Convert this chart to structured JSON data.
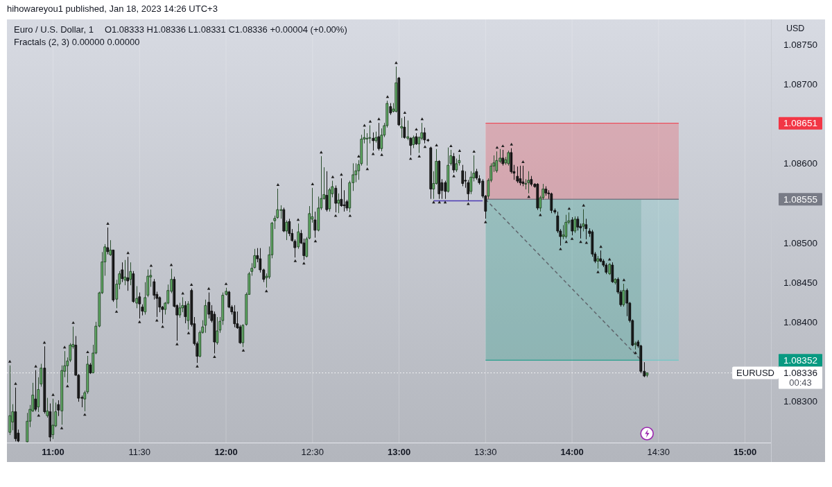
{
  "chart_data": {
    "type": "candlestick",
    "title": "Euro / U.S. Dollar, 1",
    "subtitle": "O1.08333 H1.08336 L1.08331 C1.08336 +0.00004 (+0.00%)",
    "ylabel": "USD",
    "x": [
      "2023-01-18T10:45",
      "2023-01-18T10:46",
      "2023-01-18T10:47",
      "2023-01-18T10:48",
      "2023-01-18T10:51",
      "2023-01-18T10:52",
      "2023-01-18T10:53",
      "2023-01-18T10:54",
      "2023-01-18T10:55",
      "2023-01-18T10:56",
      "2023-01-18T10:57",
      "2023-01-18T10:58",
      "2023-01-18T10:59",
      "2023-01-18T11:00",
      "2023-01-18T11:01",
      "2023-01-18T11:02",
      "2023-01-18T11:03",
      "2023-01-18T11:04",
      "2023-01-18T11:05",
      "2023-01-18T11:06",
      "2023-01-18T11:07",
      "2023-01-18T11:08",
      "2023-01-18T11:09",
      "2023-01-18T11:10",
      "2023-01-18T11:11",
      "2023-01-18T11:12",
      "2023-01-18T11:13",
      "2023-01-18T11:14",
      "2023-01-18T11:15",
      "2023-01-18T11:16",
      "2023-01-18T11:17",
      "2023-01-18T11:18",
      "2023-01-18T11:19",
      "2023-01-18T11:20",
      "2023-01-18T11:21",
      "2023-01-18T11:22",
      "2023-01-18T11:23",
      "2023-01-18T11:24",
      "2023-01-18T11:25",
      "2023-01-18T11:26",
      "2023-01-18T11:27",
      "2023-01-18T11:28",
      "2023-01-18T11:29",
      "2023-01-18T11:30",
      "2023-01-18T11:31",
      "2023-01-18T11:32",
      "2023-01-18T11:33",
      "2023-01-18T11:34",
      "2023-01-18T11:35",
      "2023-01-18T11:36",
      "2023-01-18T11:37",
      "2023-01-18T11:38",
      "2023-01-18T11:39",
      "2023-01-18T11:40",
      "2023-01-18T11:41",
      "2023-01-18T11:42",
      "2023-01-18T11:43",
      "2023-01-18T11:44",
      "2023-01-18T11:45",
      "2023-01-18T11:46",
      "2023-01-18T11:47",
      "2023-01-18T11:48",
      "2023-01-18T11:49",
      "2023-01-18T11:50",
      "2023-01-18T11:51",
      "2023-01-18T11:52",
      "2023-01-18T11:53",
      "2023-01-18T11:54",
      "2023-01-18T11:55",
      "2023-01-18T11:56",
      "2023-01-18T11:57",
      "2023-01-18T11:58",
      "2023-01-18T11:59",
      "2023-01-18T12:00",
      "2023-01-18T12:01",
      "2023-01-18T12:02",
      "2023-01-18T12:03",
      "2023-01-18T12:04",
      "2023-01-18T12:05",
      "2023-01-18T12:06",
      "2023-01-18T12:07",
      "2023-01-18T12:08",
      "2023-01-18T12:09",
      "2023-01-18T12:10",
      "2023-01-18T12:11",
      "2023-01-18T12:12",
      "2023-01-18T12:13",
      "2023-01-18T12:14",
      "2023-01-18T12:15",
      "2023-01-18T12:16",
      "2023-01-18T12:17",
      "2023-01-18T12:18",
      "2023-01-18T12:19",
      "2023-01-18T12:20",
      "2023-01-18T12:21",
      "2023-01-18T12:22",
      "2023-01-18T12:23",
      "2023-01-18T12:24",
      "2023-01-18T12:25",
      "2023-01-18T12:26",
      "2023-01-18T12:27",
      "2023-01-18T12:28",
      "2023-01-18T12:29",
      "2023-01-18T12:30",
      "2023-01-18T12:31",
      "2023-01-18T12:32",
      "2023-01-18T12:33",
      "2023-01-18T12:34",
      "2023-01-18T12:35",
      "2023-01-18T12:36",
      "2023-01-18T12:37",
      "2023-01-18T12:38",
      "2023-01-18T12:39",
      "2023-01-18T12:40",
      "2023-01-18T12:41",
      "2023-01-18T12:42",
      "2023-01-18T12:43",
      "2023-01-18T12:44",
      "2023-01-18T12:45",
      "2023-01-18T12:46",
      "2023-01-18T12:47",
      "2023-01-18T12:48",
      "2023-01-18T12:49",
      "2023-01-18T12:50",
      "2023-01-18T12:51",
      "2023-01-18T12:52",
      "2023-01-18T12:53",
      "2023-01-18T12:54",
      "2023-01-18T12:55",
      "2023-01-18T12:56",
      "2023-01-18T12:57",
      "2023-01-18T12:58",
      "2023-01-18T12:59",
      "2023-01-18T13:00",
      "2023-01-18T13:01",
      "2023-01-18T13:02",
      "2023-01-18T13:03",
      "2023-01-18T13:04",
      "2023-01-18T13:05",
      "2023-01-18T13:06",
      "2023-01-18T13:07",
      "2023-01-18T13:08",
      "2023-01-18T13:09",
      "2023-01-18T13:10",
      "2023-01-18T13:11",
      "2023-01-18T13:12",
      "2023-01-18T13:13",
      "2023-01-18T13:14",
      "2023-01-18T13:15",
      "2023-01-18T13:16",
      "2023-01-18T13:17",
      "2023-01-18T13:18",
      "2023-01-18T13:19",
      "2023-01-18T13:20",
      "2023-01-18T13:21",
      "2023-01-18T13:22",
      "2023-01-18T13:23",
      "2023-01-18T13:24",
      "2023-01-18T13:25",
      "2023-01-18T13:26",
      "2023-01-18T13:27",
      "2023-01-18T13:28",
      "2023-01-18T13:29",
      "2023-01-18T13:30",
      "2023-01-18T13:31",
      "2023-01-18T13:32",
      "2023-01-18T13:33",
      "2023-01-18T13:34",
      "2023-01-18T13:35",
      "2023-01-18T13:36",
      "2023-01-18T13:37",
      "2023-01-18T13:38",
      "2023-01-18T13:39",
      "2023-01-18T13:40",
      "2023-01-18T13:41",
      "2023-01-18T13:42",
      "2023-01-18T13:43",
      "2023-01-18T13:44",
      "2023-01-18T13:45",
      "2023-01-18T13:46",
      "2023-01-18T13:47",
      "2023-01-18T13:48",
      "2023-01-18T13:49",
      "2023-01-18T13:50",
      "2023-01-18T13:51",
      "2023-01-18T13:52",
      "2023-01-18T13:53",
      "2023-01-18T13:54",
      "2023-01-18T13:55",
      "2023-01-18T13:56",
      "2023-01-18T13:57",
      "2023-01-18T13:58",
      "2023-01-18T13:59",
      "2023-01-18T14:00",
      "2023-01-18T14:01",
      "2023-01-18T14:02",
      "2023-01-18T14:03",
      "2023-01-18T14:04",
      "2023-01-18T14:05",
      "2023-01-18T14:06",
      "2023-01-18T14:07",
      "2023-01-18T14:08",
      "2023-01-18T14:09",
      "2023-01-18T14:10",
      "2023-01-18T14:11",
      "2023-01-18T14:12",
      "2023-01-18T14:13",
      "2023-01-18T14:14",
      "2023-01-18T14:15",
      "2023-01-18T14:16",
      "2023-01-18T14:17",
      "2023-01-18T14:18",
      "2023-01-18T14:19",
      "2023-01-18T14:20",
      "2023-01-18T14:21",
      "2023-01-18T14:22",
      "2023-01-18T14:23",
      "2023-01-18T14:24",
      "2023-01-18T14:25",
      "2023-01-18T14:26"
    ],
    "ohlc": [
      [
        1.08261,
        1.08345,
        1.08258,
        1.08282
      ],
      [
        1.08274,
        1.08296,
        1.08264,
        1.08287
      ],
      [
        1.08287,
        1.08317,
        1.0825,
        1.08253
      ],
      [
        1.0826,
        1.08264,
        1.08249,
        1.0825
      ],
      [
        1.08249,
        1.08285,
        1.08249,
        1.08275
      ],
      [
        1.08275,
        1.08295,
        1.08268,
        1.0829
      ],
      [
        1.08288,
        1.08323,
        1.08287,
        1.08308
      ],
      [
        1.08303,
        1.08339,
        1.08288,
        1.0829
      ],
      [
        1.08293,
        1.0833,
        1.08287,
        1.08315
      ],
      [
        1.08322,
        1.08347,
        1.08319,
        1.08342
      ],
      [
        1.08342,
        1.08369,
        1.08285,
        1.08287
      ],
      [
        1.08282,
        1.08304,
        1.0828,
        1.08288
      ],
      [
        1.08287,
        1.08297,
        1.0825,
        1.08255
      ],
      [
        1.08258,
        1.08303,
        1.08253,
        1.0827
      ],
      [
        1.08269,
        1.08298,
        1.08268,
        1.08287
      ],
      [
        1.08296,
        1.08301,
        1.08282,
        1.08289
      ],
      [
        1.08288,
        1.08345,
        1.08271,
        1.08339
      ],
      [
        1.08338,
        1.08363,
        1.08331,
        1.08345
      ],
      [
        1.08345,
        1.08355,
        1.08324,
        1.08351
      ],
      [
        1.08352,
        1.08373,
        1.0835,
        1.08371
      ],
      [
        1.08369,
        1.08394,
        1.08367,
        1.08372
      ],
      [
        1.08371,
        1.08382,
        1.08333,
        1.08333
      ],
      [
        1.08333,
        1.08334,
        1.083,
        1.08304
      ],
      [
        1.08305,
        1.08307,
        1.08293,
        1.08304
      ],
      [
        1.08303,
        1.08313,
        1.08288,
        1.08311
      ],
      [
        1.08312,
        1.08357,
        1.0831,
        1.08347
      ],
      [
        1.08346,
        1.08348,
        1.08335,
        1.08336
      ],
      [
        1.08336,
        1.08371,
        1.08336,
        1.08361
      ],
      [
        1.08361,
        1.084,
        1.0836,
        1.08395
      ],
      [
        1.08395,
        1.08438,
        1.08394,
        1.08437
      ],
      [
        1.08437,
        1.08488,
        1.08436,
        1.08476
      ],
      [
        1.08476,
        1.08498,
        1.08459,
        1.08495
      ],
      [
        1.08494,
        1.08519,
        1.08486,
        1.08489
      ],
      [
        1.08485,
        1.08503,
        1.08484,
        1.08491
      ],
      [
        1.08491,
        1.08491,
        1.08426,
        1.08428
      ],
      [
        1.08429,
        1.08453,
        1.08418,
        1.08448
      ],
      [
        1.08448,
        1.08464,
        1.08442,
        1.08461
      ],
      [
        1.08466,
        1.08475,
        1.08451,
        1.08455
      ],
      [
        1.08453,
        1.08478,
        1.08447,
        1.08457
      ],
      [
        1.08456,
        1.08482,
        1.0844,
        1.08452
      ],
      [
        1.08454,
        1.08475,
        1.08447,
        1.08464
      ],
      [
        1.08461,
        1.08464,
        1.08425,
        1.08426
      ],
      [
        1.08424,
        1.08445,
        1.08418,
        1.0843
      ],
      [
        1.08432,
        1.08437,
        1.08405,
        1.08423
      ],
      [
        1.08419,
        1.08422,
        1.08409,
        1.08414
      ],
      [
        1.08413,
        1.0845,
        1.0841,
        1.08431
      ],
      [
        1.08434,
        1.08466,
        1.08432,
        1.08458
      ],
      [
        1.08457,
        1.08466,
        1.08445,
        1.08459
      ],
      [
        1.08451,
        1.08454,
        1.08429,
        1.08434
      ],
      [
        1.08435,
        1.08438,
        1.08407,
        1.0843
      ],
      [
        1.08431,
        1.08432,
        1.08413,
        1.08419
      ],
      [
        1.08419,
        1.0842,
        1.08399,
        1.08416
      ],
      [
        1.08416,
        1.08425,
        1.0841,
        1.08424
      ],
      [
        1.08424,
        1.08447,
        1.08423,
        1.0844
      ],
      [
        1.08439,
        1.08467,
        1.08437,
        1.08454
      ],
      [
        1.08454,
        1.08457,
        1.08419,
        1.0842
      ],
      [
        1.08421,
        1.08422,
        1.08377,
        1.08409
      ],
      [
        1.08409,
        1.08424,
        1.08406,
        1.08418
      ],
      [
        1.08418,
        1.08431,
        1.08413,
        1.08421
      ],
      [
        1.08421,
        1.08426,
        1.08399,
        1.08407
      ],
      [
        1.08402,
        1.08426,
        1.08391,
        1.08423
      ],
      [
        1.0844,
        1.08442,
        1.08395,
        1.08397
      ],
      [
        1.08398,
        1.08406,
        1.08371,
        1.08373
      ],
      [
        1.08373,
        1.08375,
        1.08349,
        1.08357
      ],
      [
        1.08357,
        1.08389,
        1.08356,
        1.08387
      ],
      [
        1.08387,
        1.08402,
        1.08386,
        1.08394
      ],
      [
        1.08396,
        1.08428,
        1.08387,
        1.08421
      ],
      [
        1.08425,
        1.08437,
        1.08405,
        1.0841
      ],
      [
        1.08414,
        1.08421,
        1.084,
        1.08402
      ],
      [
        1.0841,
        1.08413,
        1.08361,
        1.08375
      ],
      [
        1.08374,
        1.08406,
        1.08372,
        1.08389
      ],
      [
        1.0839,
        1.08406,
        1.08387,
        1.08401
      ],
      [
        1.08402,
        1.08437,
        1.08397,
        1.08434
      ],
      [
        1.08435,
        1.08443,
        1.08434,
        1.08439
      ],
      [
        1.08438,
        1.08439,
        1.08418,
        1.08419
      ],
      [
        1.08419,
        1.08421,
        1.0841,
        1.08413
      ],
      [
        1.08413,
        1.08421,
        1.08394,
        1.08398
      ],
      [
        1.08398,
        1.08413,
        1.08392,
        1.08393
      ],
      [
        1.08394,
        1.08396,
        1.08373,
        1.08374
      ],
      [
        1.08374,
        1.08397,
        1.08369,
        1.08396
      ],
      [
        1.08397,
        1.08437,
        1.08396,
        1.08435
      ],
      [
        1.08435,
        1.08463,
        1.08435,
        1.08461
      ],
      [
        1.08464,
        1.08474,
        1.08459,
        1.08468
      ],
      [
        1.08469,
        1.08492,
        1.08468,
        1.08484
      ],
      [
        1.08484,
        1.08493,
        1.08476,
        1.0848
      ],
      [
        1.0848,
        1.08493,
        1.08463,
        1.08466
      ],
      [
        1.08466,
        1.08467,
        1.08451,
        1.08454
      ],
      [
        1.08456,
        1.08461,
        1.08444,
        1.08458
      ],
      [
        1.08457,
        1.08495,
        1.08455,
        1.08485
      ],
      [
        1.08485,
        1.08526,
        1.08481,
        1.08525
      ],
      [
        1.08528,
        1.08534,
        1.08518,
        1.08531
      ],
      [
        1.08532,
        1.08568,
        1.08531,
        1.08542
      ],
      [
        1.08541,
        1.08547,
        1.08531,
        1.08542
      ],
      [
        1.08542,
        1.08544,
        1.08514,
        1.08515
      ],
      [
        1.08515,
        1.08528,
        1.08504,
        1.08526
      ],
      [
        1.08527,
        1.0853,
        1.08509,
        1.08512
      ],
      [
        1.08512,
        1.08517,
        1.08502,
        1.08503
      ],
      [
        1.08502,
        1.08504,
        1.08482,
        1.08494
      ],
      [
        1.08495,
        1.08524,
        1.08493,
        1.08514
      ],
      [
        1.08512,
        1.08516,
        1.08499,
        1.085
      ],
      [
        1.085,
        1.08505,
        1.08479,
        1.08484
      ],
      [
        1.08483,
        1.08507,
        1.08482,
        1.08505
      ],
      [
        1.08506,
        1.08546,
        1.08505,
        1.08537
      ],
      [
        1.0853,
        1.08569,
        1.08526,
        1.08533
      ],
      [
        1.08529,
        1.08539,
        1.08507,
        1.08516
      ],
      [
        1.08516,
        1.08558,
        1.08515,
        1.08544
      ],
      [
        1.08544,
        1.08609,
        1.08542,
        1.08556
      ],
      [
        1.08556,
        1.08595,
        1.08555,
        1.08561
      ],
      [
        1.0856,
        1.0859,
        1.0854,
        1.08542
      ],
      [
        1.08543,
        1.08569,
        1.0854,
        1.08567
      ],
      [
        1.08562,
        1.08578,
        1.08558,
        1.08571
      ],
      [
        1.08569,
        1.08572,
        1.08539,
        1.0855
      ],
      [
        1.0855,
        1.08562,
        1.08538,
        1.08554
      ],
      [
        1.08555,
        1.08581,
        1.08546,
        1.08547
      ],
      [
        1.08548,
        1.08566,
        1.0854,
        1.08547
      ],
      [
        1.08552,
        1.08554,
        1.08541,
        1.08544
      ],
      [
        1.08544,
        1.08578,
        1.08539,
        1.08576
      ],
      [
        1.08576,
        1.086,
        1.08566,
        1.08586
      ],
      [
        1.08586,
        1.086,
        1.08577,
        1.08591
      ],
      [
        1.08591,
        1.08604,
        1.0858,
        1.08599
      ],
      [
        1.086,
        1.08636,
        1.08598,
        1.08631
      ],
      [
        1.08631,
        1.08643,
        1.08626,
        1.08633
      ],
      [
        1.08632,
        1.08638,
        1.08598,
        1.08632
      ],
      [
        1.08632,
        1.08648,
        1.08626,
        1.08633
      ],
      [
        1.08632,
        1.08639,
        1.08617,
        1.08629
      ],
      [
        1.08629,
        1.0864,
        1.08627,
        1.08633
      ],
      [
        1.08634,
        1.08651,
        1.08617,
        1.08619
      ],
      [
        1.08619,
        1.08644,
        1.08616,
        1.08636
      ],
      [
        1.08636,
        1.08651,
        1.08634,
        1.08648
      ],
      [
        1.08648,
        1.08679,
        1.08646,
        1.08676
      ],
      [
        1.08672,
        1.08676,
        1.08662,
        1.08664
      ],
      [
        1.08666,
        1.08676,
        1.08665,
        1.08669
      ],
      [
        1.08666,
        1.08722,
        1.08665,
        1.08702
      ],
      [
        1.08708,
        1.08709,
        1.08648,
        1.08649
      ],
      [
        1.08645,
        1.08657,
        1.08633,
        1.08647
      ],
      [
        1.08646,
        1.08659,
        1.08632,
        1.08633
      ],
      [
        1.08632,
        1.08654,
        1.0863,
        1.08634
      ],
      [
        1.08632,
        1.08633,
        1.08611,
        1.08623
      ],
      [
        1.08624,
        1.08635,
        1.0862,
        1.08633
      ],
      [
        1.08634,
        1.08638,
        1.08624,
        1.08625
      ],
      [
        1.08625,
        1.08634,
        1.08614,
        1.08633
      ],
      [
        1.08632,
        1.08651,
        1.0863,
        1.08639
      ],
      [
        1.08639,
        1.08645,
        1.08626,
        1.0863
      ],
      [
        1.0863,
        1.08631,
        1.08628,
        1.08629
      ],
      [
        1.0862,
        1.08621,
        1.08556,
        1.08568
      ],
      [
        1.08568,
        1.0859,
        1.08556,
        1.08575
      ],
      [
        1.08575,
        1.08618,
        1.08574,
        1.08603
      ],
      [
        1.08603,
        1.08604,
        1.08556,
        1.08562
      ],
      [
        1.08576,
        1.0858,
        1.08556,
        1.08566
      ],
      [
        1.08576,
        1.08578,
        1.08556,
        1.08565
      ],
      [
        1.08565,
        1.0862,
        1.08564,
        1.08598
      ],
      [
        1.086,
        1.08617,
        1.08598,
        1.0861
      ],
      [
        1.08609,
        1.08613,
        1.08589,
        1.08592
      ],
      [
        1.08592,
        1.08606,
        1.0859,
        1.086
      ],
      [
        1.08601,
        1.08611,
        1.08598,
        1.08604
      ],
      [
        1.08591,
        1.08598,
        1.08572,
        1.08575
      ],
      [
        1.08579,
        1.0859,
        1.0857,
        1.08578
      ],
      [
        1.08576,
        1.08579,
        1.08554,
        1.08562
      ],
      [
        1.08565,
        1.0859,
        1.08562,
        1.08583
      ],
      [
        1.08582,
        1.0861,
        1.08578,
        1.08588
      ],
      [
        1.0859,
        1.08593,
        1.0858,
        1.08582
      ],
      [
        1.08581,
        1.08585,
        1.08574,
        1.08576
      ],
      [
        1.08578,
        1.0858,
        1.08557,
        1.08559
      ],
      [
        1.08559,
        1.0856,
        1.08531,
        1.0854
      ],
      [
        1.08559,
        1.08581,
        1.08556,
        1.08579
      ],
      [
        1.08579,
        1.086,
        1.08577,
        1.08597
      ],
      [
        1.08597,
        1.0861,
        1.0859,
        1.08601
      ],
      [
        1.08591,
        1.08615,
        1.08589,
        1.08604
      ],
      [
        1.08603,
        1.08618,
        1.08601,
        1.08607
      ],
      [
        1.08607,
        1.08617,
        1.08598,
        1.086
      ],
      [
        1.08601,
        1.08608,
        1.08599,
        1.08605
      ],
      [
        1.086,
        1.08616,
        1.08598,
        1.08614
      ],
      [
        1.08614,
        1.08619,
        1.08588,
        1.0859
      ],
      [
        1.0859,
        1.08598,
        1.0858,
        1.08588
      ],
      [
        1.08584,
        1.08596,
        1.08576,
        1.08578
      ],
      [
        1.08581,
        1.08597,
        1.08573,
        1.08576
      ],
      [
        1.08577,
        1.08597,
        1.08572,
        1.08575
      ],
      [
        1.08575,
        1.0858,
        1.08568,
        1.08575
      ],
      [
        1.08576,
        1.0859,
        1.08563,
        1.08579
      ],
      [
        1.0858,
        1.08584,
        1.08572,
        1.08574
      ],
      [
        1.08574,
        1.08575,
        1.0857,
        1.08571
      ],
      [
        1.08574,
        1.08575,
        1.08542,
        1.08544
      ],
      [
        1.08544,
        1.08559,
        1.0854,
        1.08557
      ],
      [
        1.08557,
        1.08574,
        1.08555,
        1.08568
      ],
      [
        1.08568,
        1.08571,
        1.0856,
        1.08563
      ],
      [
        1.08563,
        1.08566,
        1.08556,
        1.08562
      ],
      [
        1.08562,
        1.08563,
        1.08538,
        1.08541
      ],
      [
        1.08541,
        1.08543,
        1.08537,
        1.08539
      ],
      [
        1.08534,
        1.08539,
        1.08513,
        1.08515
      ],
      [
        1.08515,
        1.08517,
        1.08497,
        1.08508
      ],
      [
        1.08508,
        1.08522,
        1.08505,
        1.0851
      ],
      [
        1.08508,
        1.08535,
        1.08506,
        1.08526
      ],
      [
        1.08526,
        1.08538,
        1.08524,
        1.08528
      ],
      [
        1.08529,
        1.08532,
        1.0851,
        1.08515
      ],
      [
        1.08515,
        1.08533,
        1.08513,
        1.0853
      ],
      [
        1.0853,
        1.08533,
        1.08516,
        1.0852
      ],
      [
        1.08521,
        1.08524,
        1.08506,
        1.08519
      ],
      [
        1.08521,
        1.08542,
        1.08515,
        1.08524
      ],
      [
        1.08523,
        1.0853,
        1.08505,
        1.08518
      ],
      [
        1.08515,
        1.08518,
        1.08508,
        1.08512
      ],
      [
        1.08514,
        1.08516,
        1.08483,
        1.08486
      ],
      [
        1.08486,
        1.08488,
        1.08475,
        1.08477
      ],
      [
        1.08477,
        1.08483,
        1.08468,
        1.0848
      ],
      [
        1.0848,
        1.0849,
        1.08476,
        1.08477
      ],
      [
        1.08477,
        1.08479,
        1.0847,
        1.08472
      ],
      [
        1.08472,
        1.08474,
        1.08461,
        1.08463
      ],
      [
        1.08461,
        1.08474,
        1.0846,
        1.08473
      ],
      [
        1.08472,
        1.08475,
        1.0845,
        1.08451
      ],
      [
        1.0845,
        1.08455,
        1.08448,
        1.08454
      ],
      [
        1.08454,
        1.08456,
        1.08436,
        1.08438
      ],
      [
        1.08438,
        1.0844,
        1.0842,
        1.08422
      ],
      [
        1.08422,
        1.08448,
        1.0842,
        1.0844
      ],
      [
        1.0844,
        1.08442,
        1.08408,
        1.08424
      ],
      [
        1.08424,
        1.08425,
        1.084,
        1.08402
      ],
      [
        1.08402,
        1.08403,
        1.0837,
        1.08371
      ],
      [
        1.08372,
        1.08375,
        1.08366,
        1.08373
      ],
      [
        1.08375,
        1.08377,
        1.08368,
        1.0837
      ],
      [
        1.0837,
        1.08371,
        1.08336,
        1.08338
      ],
      [
        1.08338,
        1.08349,
        1.08331,
        1.08332
      ],
      [
        1.08333,
        1.08336,
        1.08331,
        1.08336
      ]
    ],
    "series": [
      {
        "type": "line",
        "color": "#f23645",
        "x": [
          "2023-01-18T13:30",
          "2023-01-18T14:37"
        ],
        "values": [
          1.08651,
          1.08651
        ],
        "lower": [
          1.08555,
          1.08555
        ],
        "upper": [
          1.08651,
          1.08651
        ]
      },
      {
        "type": "line",
        "color": "#089981",
        "x": [
          "2023-01-18T13:30",
          "2023-01-18T14:24"
        ],
        "values": [
          1.08352,
          1.08352
        ],
        "lower": [
          1.08352,
          1.08352
        ],
        "upper": [
          1.08555,
          1.08555
        ]
      },
      {
        "type": "line",
        "color": "#62c9c5",
        "x": [
          "2023-01-18T14:24",
          "2023-01-18T14:37"
        ],
        "values": [
          1.08352,
          1.08352
        ],
        "lower": [
          1.08352,
          1.08352
        ],
        "upper": [
          1.08555,
          1.08555
        ]
      },
      {
        "type": "line",
        "color": "#787b86",
        "x": [
          "2023-01-18T13:30",
          "2023-01-18T14:37"
        ],
        "values": [
          1.08555,
          1.08555
        ]
      },
      {
        "type": "line",
        "color": "#4b3bb5",
        "x": [
          "2023-01-18T13:12",
          "2023-01-18T13:29"
        ],
        "values": [
          1.08553,
          1.08553
        ]
      },
      {
        "type": "line",
        "color": "#5f656c",
        "line_style": "dashed",
        "x": [
          "2023-01-18T13:30",
          "2023-01-18T14:24"
        ],
        "values": [
          1.08555,
          1.08352
        ]
      },
      {
        "type": "scatter",
        "color": "#1e1e1e",
        "marker": "triangle",
        "x": [
          "2023-01-18T10:45",
          "2023-01-18T10:47",
          "2023-01-18T10:54",
          "2023-01-18T10:57",
          "2023-01-18T11:00",
          "2023-01-18T11:04",
          "2023-01-18T11:07",
          "2023-01-18T11:12",
          "2023-01-18T11:19",
          "2023-01-18T11:26",
          "2023-01-18T11:34",
          "2023-01-18T11:41",
          "2023-01-18T11:45",
          "2023-01-18T11:48",
          "2023-01-18T11:54",
          "2023-01-18T12:00",
          "2023-01-18T12:18",
          "2023-01-18T12:25",
          "2023-01-18T12:30",
          "2023-01-18T12:33",
          "2023-01-18T12:37",
          "2023-01-18T12:40",
          "2023-01-18T12:46",
          "2023-01-18T12:48",
          "2023-01-18T12:50",
          "2023-01-18T12:53",
          "2023-01-18T12:56",
          "2023-01-18T12:59",
          "2023-01-18T13:02",
          "2023-01-18T13:06",
          "2023-01-18T13:08",
          "2023-01-18T13:13",
          "2023-01-18T13:18",
          "2023-01-18T13:21",
          "2023-01-18T13:26",
          "2023-01-18T13:34",
          "2023-01-18T13:36",
          "2023-01-18T13:39",
          "2023-01-18T13:43",
          "2023-01-18T13:59",
          "2023-01-18T14:04",
          "2023-01-18T14:10",
          "2023-01-18T14:13",
          "2023-01-18T14:18"
        ],
        "values": [
          1.0835,
          1.08322,
          1.08344,
          1.08374,
          1.08308,
          1.08368,
          1.08399,
          1.08362,
          1.08524,
          1.08487,
          1.08471,
          1.08472,
          1.08436,
          1.08447,
          1.08442,
          1.08448,
          1.08573,
          1.08529,
          1.08574,
          1.08614,
          1.08583,
          1.08586,
          1.08609,
          1.08648,
          1.08653,
          1.08656,
          1.08684,
          1.08727,
          1.08664,
          1.08643,
          1.08656,
          1.08623,
          1.08622,
          1.08616,
          1.08615,
          1.0862,
          1.08622,
          1.08624,
          1.08602,
          1.08543,
          1.08547,
          1.08495,
          1.08479,
          1.08453
        ]
      },
      {
        "type": "scatter",
        "color": "#1e1e1e",
        "marker": "triangle",
        "x": [
          "2023-01-18T10:55",
          "2023-01-18T11:03",
          "2023-01-18T11:05",
          "2023-01-18T11:11",
          "2023-01-18T11:22",
          "2023-01-18T11:30",
          "2023-01-18T11:36",
          "2023-01-18T11:38",
          "2023-01-18T11:43",
          "2023-01-18T11:47",
          "2023-01-18T11:50",
          "2023-01-18T11:56",
          "2023-01-18T12:06",
          "2023-01-18T12:14",
          "2023-01-18T12:24",
          "2023-01-18T12:27",
          "2023-01-18T12:31",
          "2023-01-18T12:38",
          "2023-01-18T12:43",
          "2023-01-18T12:49",
          "2023-01-18T12:51",
          "2023-01-18T12:54",
          "2023-01-18T13:04",
          "2023-01-18T13:07",
          "2023-01-18T13:09",
          "2023-01-18T13:12",
          "2023-01-18T13:14",
          "2023-01-18T13:16",
          "2023-01-18T13:19",
          "2023-01-18T13:24",
          "2023-01-18T13:30",
          "2023-01-18T13:45",
          "2023-01-18T13:49",
          "2023-01-18T13:56",
          "2023-01-18T13:58",
          "2023-01-18T14:00",
          "2023-01-18T14:03",
          "2023-01-18T14:05",
          "2023-01-18T14:09",
          "2023-01-18T14:22"
        ],
        "values": [
          1.08282,
          1.08266,
          1.08319,
          1.08283,
          1.08413,
          1.084,
          1.08402,
          1.08394,
          1.08372,
          1.08386,
          1.08344,
          1.08356,
          1.08364,
          1.08439,
          1.08477,
          1.08474,
          1.08502,
          1.08534,
          1.08534,
          1.08593,
          1.08612,
          1.08611,
          1.08606,
          1.08609,
          1.08621,
          1.08551,
          1.08551,
          1.08551,
          1.08584,
          1.08549,
          1.08526,
          1.08558,
          1.08535,
          1.08492,
          1.08501,
          1.08505,
          1.08501,
          1.085,
          1.08463,
          1.08361
        ]
      }
    ],
    "ref_lines": [
      {
        "axis": "y",
        "value": 1.08336,
        "label": "EURUSD",
        "color": "#ffffff",
        "line_style": "dotted"
      }
    ],
    "annotations": [
      "hihowareyou1 published, Jan 18, 2023 14:26 UTC+3",
      "Fractals (2, 3) 0.00000 0.00000",
      "00:43"
    ],
    "xlim": [
      "2023-01-18T10:44",
      "2023-01-18T15:09"
    ],
    "xticks": [
      {
        "value": "2023-01-18T11:00",
        "label": "11:00"
      },
      {
        "value": "2023-01-18T11:30",
        "label": "11:30"
      },
      {
        "value": "2023-01-18T12:00",
        "label": "12:00"
      },
      {
        "value": "2023-01-18T12:30",
        "label": "12:30"
      },
      {
        "value": "2023-01-18T13:00",
        "label": "13:00"
      },
      {
        "value": "2023-01-18T13:30",
        "label": "13:30"
      },
      {
        "value": "2023-01-18T14:00",
        "label": "14:00"
      },
      {
        "value": "2023-01-18T14:30",
        "label": "14:30"
      },
      {
        "value": "2023-01-18T15:00",
        "label": "15:00"
      }
    ],
    "ylim": [
      1.08248,
      1.08782
    ],
    "yticks": [
      {
        "value": 1.083,
        "label": "1.08300"
      },
      1.08336,
      1.08352,
      {
        "value": 1.084,
        "label": "1.08400"
      },
      {
        "value": 1.0845,
        "label": "1.08450"
      },
      {
        "value": 1.085,
        "label": "1.08500"
      },
      1.08555,
      {
        "value": 1.086,
        "label": "1.08600"
      },
      1.08651,
      {
        "value": 1.087,
        "label": "1.08700"
      },
      {
        "value": 1.0875,
        "label": "1.08750"
      }
    ],
    "grid": "x"
  }
}
